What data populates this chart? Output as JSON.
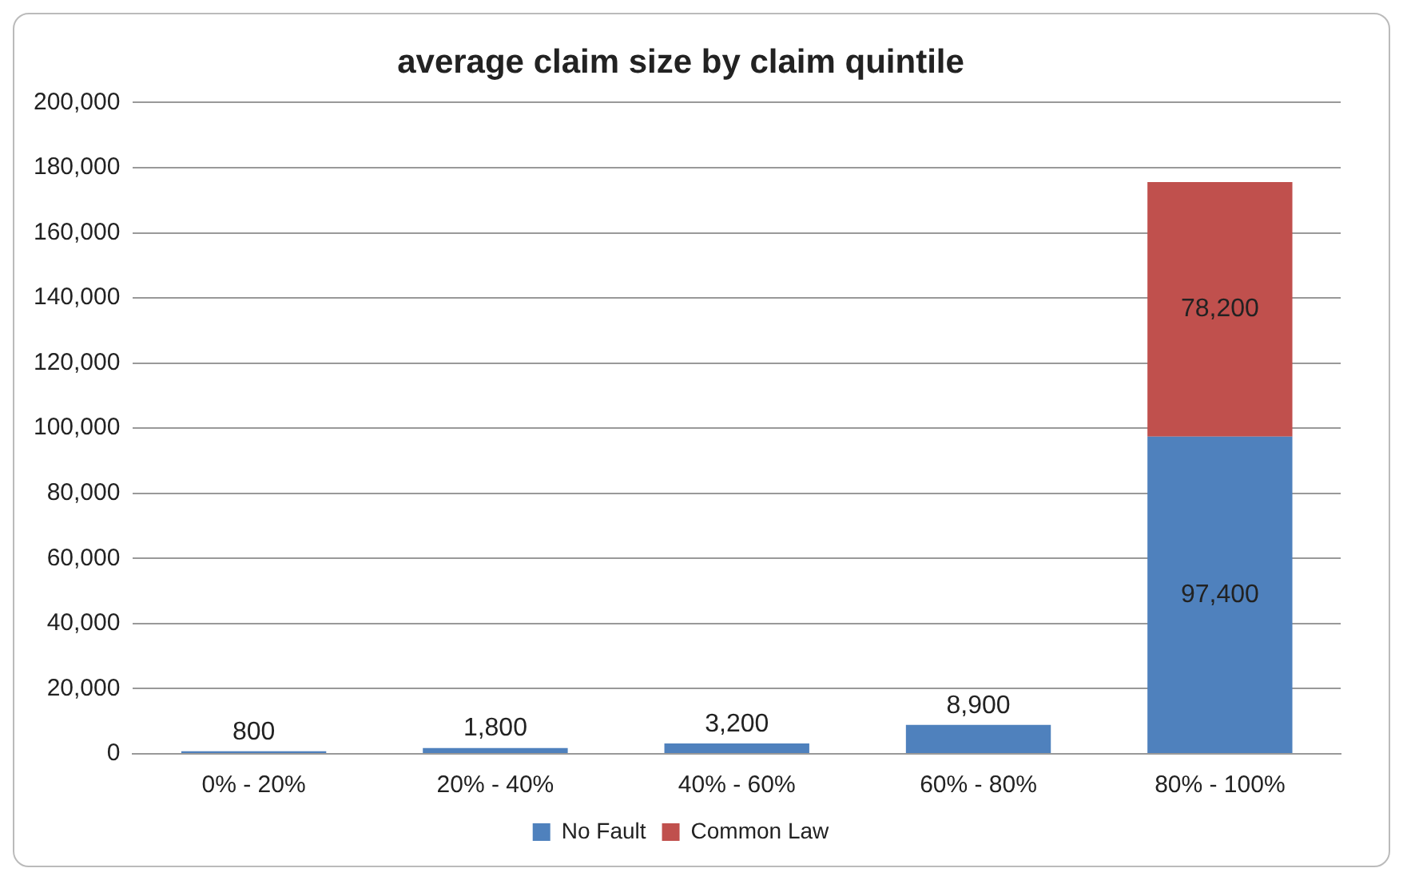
{
  "chart_data": {
    "type": "bar",
    "title": "average claim size by claim quintile",
    "categories": [
      "0% - 20%",
      "20% - 40%",
      "40% - 60%",
      "60% - 80%",
      "80% - 100%"
    ],
    "series": [
      {
        "name": "No Fault",
        "color": "#4f81bd",
        "values": [
          800,
          1800,
          3200,
          8900,
          97400
        ],
        "value_labels": [
          "800",
          "1,800",
          "3,200",
          "8,900",
          "97,400"
        ]
      },
      {
        "name": "Common Law",
        "color": "#c0504d",
        "values": [
          null,
          null,
          null,
          null,
          78200
        ],
        "value_labels": [
          null,
          null,
          null,
          null,
          "78,200"
        ]
      }
    ],
    "stacked": true,
    "ylim": [
      0,
      200000
    ],
    "yticks": [
      0,
      {
        "value": 20000,
        "label": "20,000"
      },
      {
        "value": 40000,
        "label": "40,000"
      },
      {
        "value": 60000,
        "label": "60,000"
      },
      {
        "value": 80000,
        "label": "80,000"
      },
      {
        "value": 100000,
        "label": "100,000"
      },
      {
        "value": 120000,
        "label": "120,000"
      },
      {
        "value": 140000,
        "label": "140,000"
      },
      {
        "value": 160000,
        "label": "160,000"
      },
      {
        "value": 180000,
        "label": "180,000"
      },
      {
        "value": 200000,
        "label": "200,000"
      }
    ],
    "grid": "y",
    "legend": "bottom"
  }
}
